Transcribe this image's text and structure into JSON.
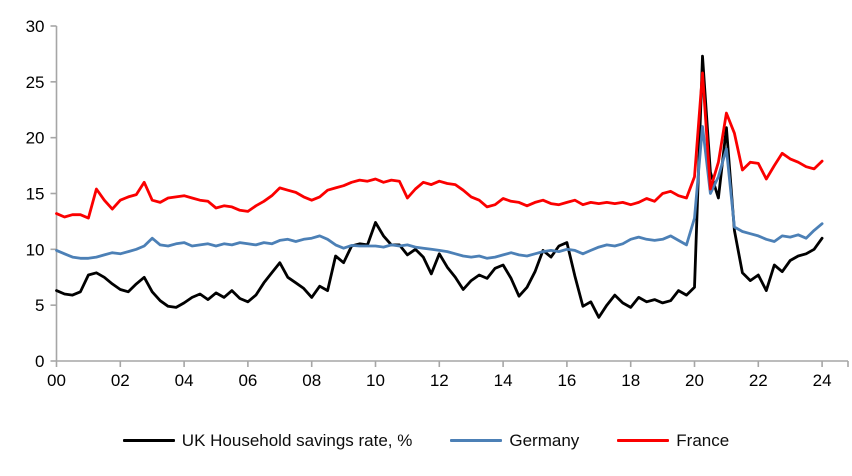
{
  "chart_data": {
    "type": "line",
    "title": "",
    "xlabel": "",
    "ylabel": "",
    "x_unit": "year (two-digit labels, quarterly data)",
    "x_start_year_offset": 0,
    "x_step_years": 0.25,
    "xlim_years": [
      0,
      24.8
    ],
    "ylim": [
      0,
      30
    ],
    "y_ticks": [
      0,
      5,
      10,
      15,
      20,
      25,
      30
    ],
    "x_tick_labels": [
      "00",
      "02",
      "04",
      "06",
      "08",
      "10",
      "12",
      "14",
      "16",
      "18",
      "20",
      "22",
      "24"
    ],
    "grid": false,
    "legend_position": "bottom-center",
    "axis_color": "#a6a6a6",
    "series": [
      {
        "name": "UK Household savings rate, %",
        "color": "#000000",
        "values": [
          6.3,
          6.0,
          5.9,
          6.2,
          7.7,
          7.9,
          7.5,
          6.9,
          6.4,
          6.2,
          6.9,
          7.5,
          6.2,
          5.4,
          4.9,
          4.8,
          5.2,
          5.7,
          6.0,
          5.5,
          6.1,
          5.7,
          6.3,
          5.6,
          5.3,
          5.9,
          7.0,
          7.9,
          8.8,
          7.5,
          7.0,
          6.5,
          5.7,
          6.7,
          6.3,
          9.4,
          8.8,
          10.3,
          10.5,
          10.4,
          12.4,
          11.2,
          10.4,
          10.4,
          9.5,
          10.0,
          9.3,
          7.8,
          9.6,
          8.4,
          7.5,
          6.4,
          7.2,
          7.7,
          7.4,
          8.3,
          8.6,
          7.4,
          5.8,
          6.6,
          8.0,
          9.9,
          9.3,
          10.3,
          10.6,
          7.6,
          4.9,
          5.3,
          3.9,
          5.0,
          5.9,
          5.2,
          4.8,
          5.7,
          5.3,
          5.5,
          5.2,
          5.4,
          6.3,
          5.9,
          6.6,
          27.3,
          16.9,
          14.6,
          20.9,
          11.7,
          7.9,
          7.2,
          7.7,
          6.3,
          8.6,
          8.0,
          9.0,
          9.4,
          9.6,
          10.0,
          11.0
        ]
      },
      {
        "name": "Germany",
        "color": "#4C80B6",
        "values": [
          9.9,
          9.6,
          9.3,
          9.2,
          9.2,
          9.3,
          9.5,
          9.7,
          9.6,
          9.8,
          10.0,
          10.3,
          11.0,
          10.4,
          10.3,
          10.5,
          10.6,
          10.3,
          10.4,
          10.5,
          10.3,
          10.5,
          10.4,
          10.6,
          10.5,
          10.4,
          10.6,
          10.5,
          10.8,
          10.9,
          10.7,
          10.9,
          11.0,
          11.2,
          10.9,
          10.4,
          10.1,
          10.35,
          10.3,
          10.3,
          10.3,
          10.2,
          10.4,
          10.3,
          10.4,
          10.2,
          10.1,
          10.0,
          9.9,
          9.8,
          9.6,
          9.4,
          9.3,
          9.4,
          9.2,
          9.3,
          9.5,
          9.7,
          9.5,
          9.4,
          9.6,
          9.8,
          9.9,
          9.8,
          10.0,
          9.9,
          9.6,
          9.9,
          10.2,
          10.4,
          10.3,
          10.5,
          10.9,
          11.1,
          10.9,
          10.8,
          10.9,
          11.2,
          10.8,
          10.4,
          12.8,
          21.0,
          15.0,
          16.5,
          19.0,
          12.0,
          11.6,
          11.4,
          11.2,
          10.9,
          10.7,
          11.2,
          11.1,
          11.3,
          11.0,
          11.7,
          12.3
        ]
      },
      {
        "name": "France",
        "color": "#FB0000",
        "values": [
          13.2,
          12.9,
          13.1,
          13.1,
          12.8,
          15.4,
          14.4,
          13.6,
          14.4,
          14.7,
          14.9,
          16.0,
          14.4,
          14.2,
          14.6,
          14.7,
          14.8,
          14.6,
          14.4,
          14.3,
          13.7,
          13.9,
          13.8,
          13.5,
          13.4,
          13.9,
          14.3,
          14.8,
          15.5,
          15.3,
          15.1,
          14.7,
          14.4,
          14.7,
          15.3,
          15.5,
          15.7,
          16.0,
          16.2,
          16.1,
          16.3,
          16.0,
          16.2,
          16.1,
          14.6,
          15.4,
          16.0,
          15.8,
          16.1,
          15.9,
          15.8,
          15.3,
          14.7,
          14.4,
          13.8,
          14.0,
          14.55,
          14.3,
          14.2,
          13.9,
          14.2,
          14.4,
          14.1,
          14.0,
          14.2,
          14.4,
          14.0,
          14.2,
          14.1,
          14.2,
          14.1,
          14.2,
          14.0,
          14.2,
          14.55,
          14.3,
          15.0,
          15.2,
          14.8,
          14.6,
          16.5,
          25.8,
          15.4,
          17.8,
          22.2,
          20.4,
          17.1,
          17.8,
          17.7,
          16.3,
          17.5,
          18.6,
          18.1,
          17.8,
          17.4,
          17.2,
          17.9
        ]
      }
    ]
  }
}
